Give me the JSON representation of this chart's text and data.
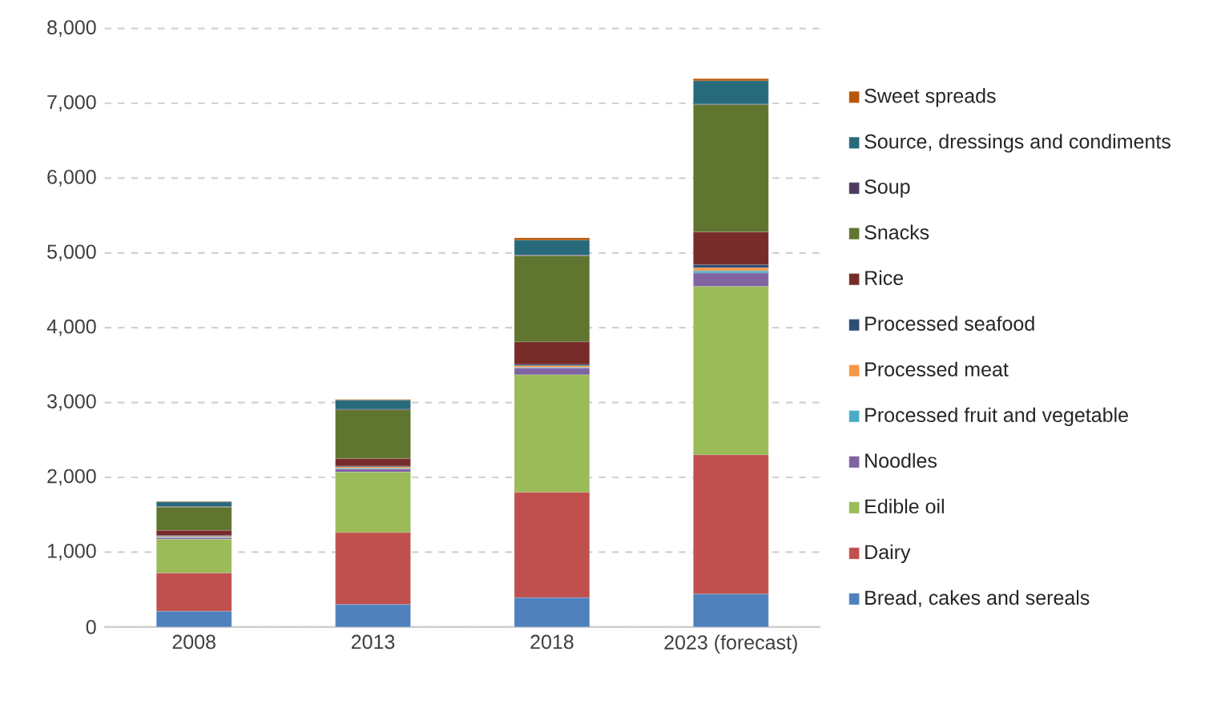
{
  "chart_data": {
    "type": "bar",
    "stacked": true,
    "categories": [
      "2008",
      "2013",
      "2018",
      "2023 (forecast)"
    ],
    "ylim": [
      0,
      8000
    ],
    "yticks": [
      0,
      {
        "value": 1000,
        "label": "1,000"
      },
      {
        "value": 2000,
        "label": "2,000"
      },
      {
        "value": 3000,
        "label": "3,000"
      },
      {
        "value": 4000,
        "label": "4,000"
      },
      {
        "value": 5000,
        "label": "5,000"
      },
      {
        "value": 6000,
        "label": "6,000"
      },
      {
        "value": 7000,
        "label": "7,000"
      },
      {
        "value": 8000,
        "label": "8,000"
      }
    ],
    "grid": "y",
    "legend": "right",
    "series": [
      {
        "name": "Bread, cakes and sereals",
        "color": "#4f81bd",
        "values": [
          210,
          300,
          390,
          440
        ]
      },
      {
        "name": "Dairy",
        "color": "#c0504d",
        "values": [
          510,
          960,
          1410,
          1860
        ]
      },
      {
        "name": "Edible oil",
        "color": "#9bbb59",
        "values": [
          450,
          810,
          1570,
          2250
        ]
      },
      {
        "name": "Noodles",
        "color": "#8064a2",
        "values": [
          20,
          40,
          90,
          180
        ]
      },
      {
        "name": "Processed fruit and vegetable",
        "color": "#4bacc6",
        "values": [
          10,
          10,
          10,
          30
        ]
      },
      {
        "name": "Processed meat",
        "color": "#f79646",
        "values": [
          10,
          20,
          20,
          40
        ]
      },
      {
        "name": "Processed seafood",
        "color": "#2c4d75",
        "values": [
          10,
          10,
          20,
          40
        ]
      },
      {
        "name": "Rice",
        "color": "#772c2a",
        "values": [
          70,
          100,
          300,
          440
        ]
      },
      {
        "name": "Snacks",
        "color": "#5f7530",
        "values": [
          310,
          650,
          1150,
          1700
        ]
      },
      {
        "name": "Soup",
        "color": "#4d3b62",
        "values": [
          10,
          10,
          10,
          10
        ]
      },
      {
        "name": "Source, dressings and condiments",
        "color": "#276a7c",
        "values": [
          60,
          120,
          200,
          310
        ]
      },
      {
        "name": "Sweet spreads",
        "color": "#b65708",
        "values": [
          10,
          10,
          30,
          30
        ]
      }
    ]
  }
}
